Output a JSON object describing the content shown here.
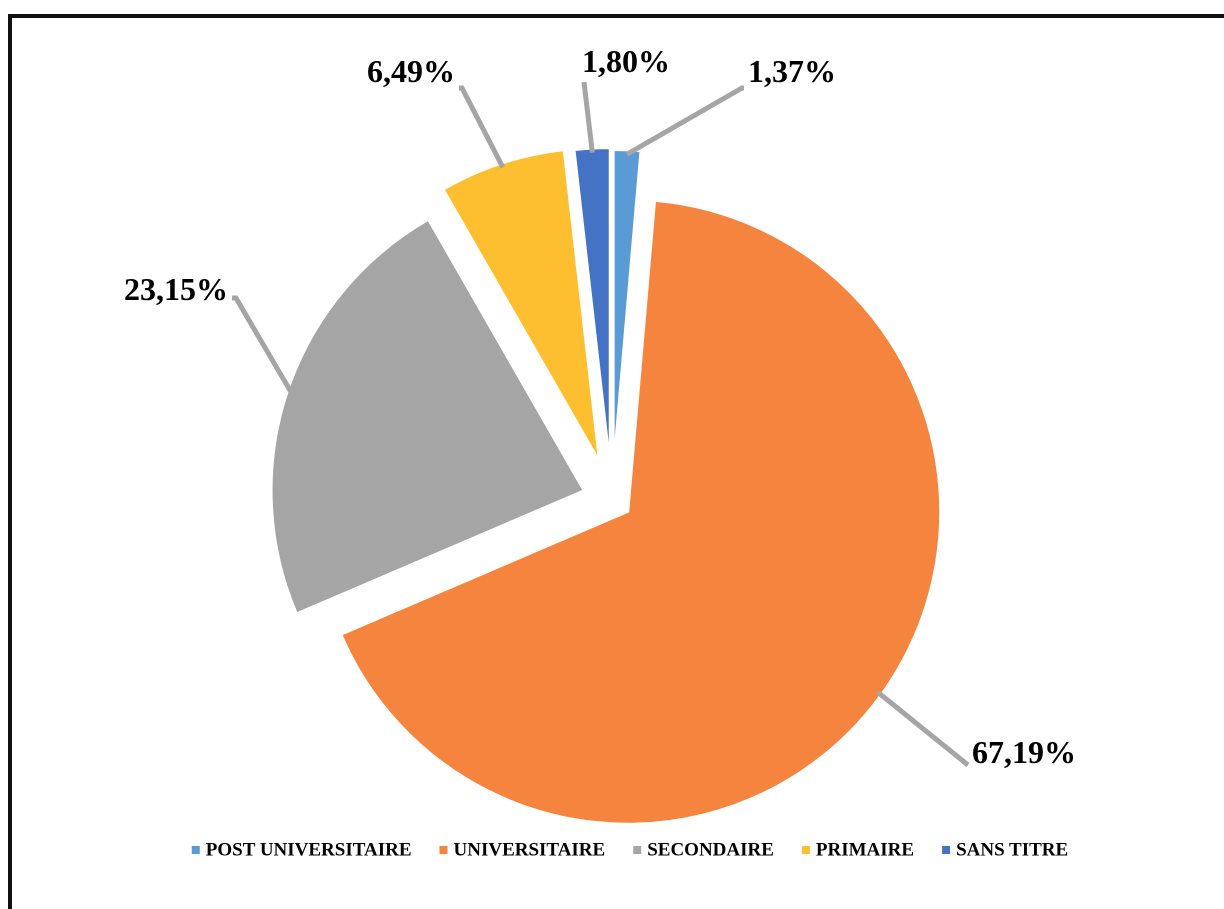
{
  "chart_data": {
    "type": "pie",
    "categories": [
      "POST UNIVERSITAIRE",
      "UNIVERSITAIRE",
      "SECONDAIRE",
      "PRIMAIRE",
      "SANS TITRE"
    ],
    "values": [
      1.37,
      67.19,
      23.15,
      6.49,
      1.8
    ],
    "value_labels": [
      "1,37%",
      "67,19%",
      "23,15%",
      "6,49%",
      "1,80%"
    ],
    "colors": [
      "#5b9bd5",
      "#f5843f",
      "#a5a5a5",
      "#fdbe2f",
      "#4472c4"
    ],
    "legend": "bottom"
  }
}
